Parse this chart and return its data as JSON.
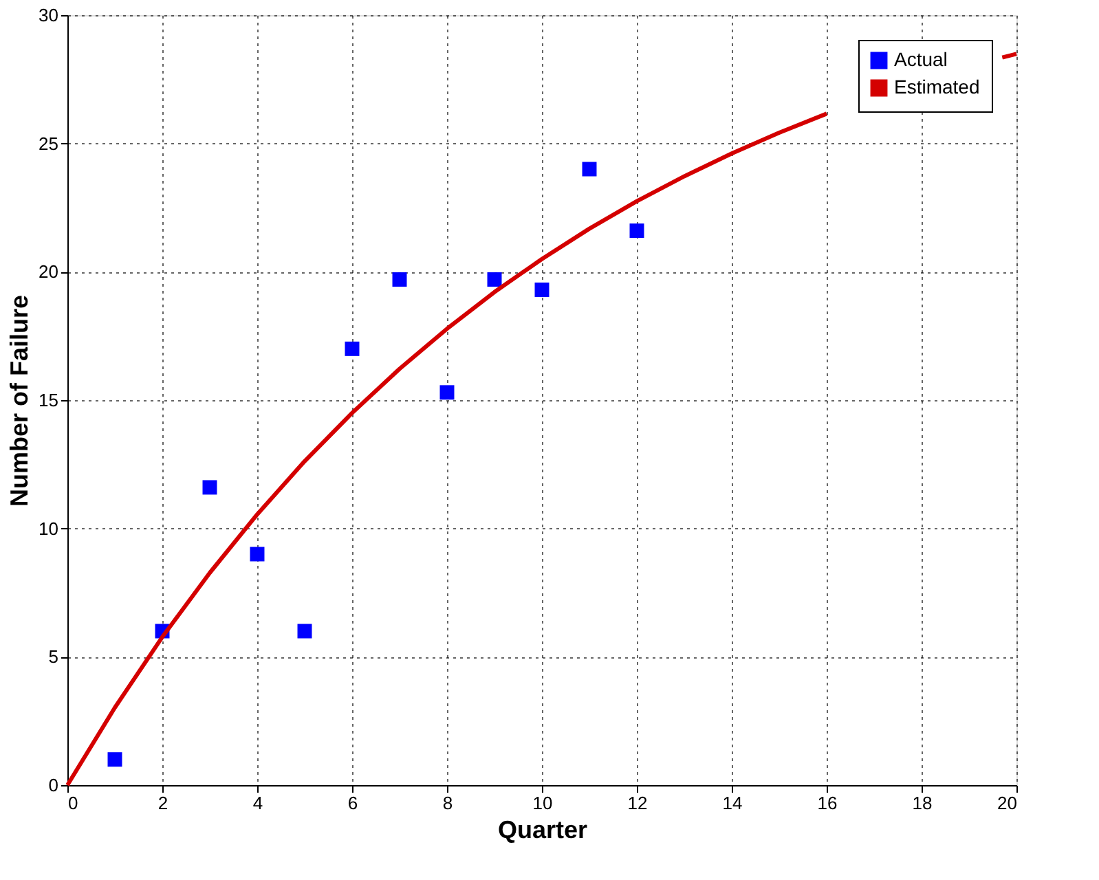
{
  "chart_data": {
    "type": "scatter",
    "xlabel": "Quarter",
    "ylabel": "Number of Failure",
    "xlim": [
      0,
      20
    ],
    "ylim": [
      0,
      30
    ],
    "xticks": [
      0,
      2,
      4,
      6,
      8,
      10,
      12,
      14,
      16,
      18,
      20
    ],
    "yticks": [
      0,
      5,
      10,
      15,
      20,
      25,
      30
    ],
    "grid": true,
    "legend": "top right",
    "series": [
      {
        "name": "Actual",
        "marker": "square",
        "color": "#0000ff",
        "x": [
          1,
          2,
          3,
          4,
          5,
          6,
          7,
          8,
          9,
          10,
          11,
          12
        ],
        "values": [
          1.0,
          6.0,
          11.6,
          9.0,
          6.0,
          17.0,
          19.7,
          15.3,
          19.7,
          19.3,
          24.0,
          21.6
        ]
      },
      {
        "name": "Estimated",
        "type": "line",
        "line_style": "solid",
        "color": "#d40000",
        "x": [
          0,
          1,
          2,
          3,
          4,
          5,
          6,
          7,
          8,
          9,
          10,
          11,
          12,
          13,
          14,
          15,
          16,
          17,
          18,
          19,
          19.7,
          20
        ],
        "values": [
          0,
          3.02,
          5.77,
          8.27,
          10.55,
          12.62,
          14.5,
          16.22,
          17.78,
          19.21,
          20.5,
          21.68,
          22.75,
          23.72,
          24.61,
          25.42,
          26.16,
          null,
          null,
          null,
          28.35,
          28.49
        ]
      }
    ]
  }
}
